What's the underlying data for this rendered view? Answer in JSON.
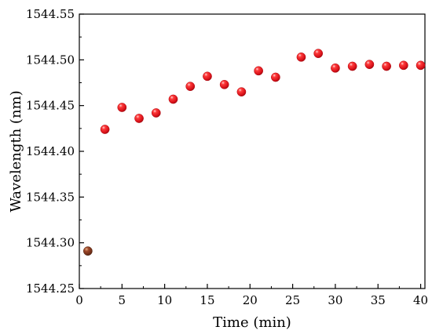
{
  "chart_data": {
    "type": "scatter",
    "title": "",
    "xlabel": "Time (min)",
    "ylabel": "Wavelength (nm)",
    "xlim": [
      0,
      40.5
    ],
    "ylim": [
      1544.25,
      1544.55
    ],
    "grid": false,
    "legend": "none",
    "marker_color": "#e8141c",
    "first_marker_color": "#8b3a1a",
    "x_ticks": [
      0,
      5,
      10,
      15,
      20,
      25,
      30,
      35,
      40
    ],
    "x_tick_labels": [
      "0",
      "5",
      "10",
      "15",
      "20",
      "25",
      "30",
      "35",
      "40"
    ],
    "y_ticks": [
      1544.25,
      1544.3,
      1544.35,
      1544.4,
      1544.45,
      1544.5,
      1544.55
    ],
    "y_tick_labels": [
      "1544.25",
      "1544.30",
      "1544.35",
      "1544.40",
      "1544.45",
      "1544.50",
      "1544.55"
    ],
    "series": [
      {
        "x": [
          1,
          3,
          5,
          7,
          9,
          11,
          13,
          15,
          17,
          19,
          21,
          23,
          26,
          28,
          30,
          32,
          34,
          36,
          38,
          40
        ],
        "y": [
          1544.291,
          1544.424,
          1544.448,
          1544.436,
          1544.442,
          1544.457,
          1544.471,
          1544.482,
          1544.473,
          1544.465,
          1544.488,
          1544.481,
          1544.503,
          1544.507,
          1544.491,
          1544.493,
          1544.495,
          1544.493,
          1544.494,
          1544.494
        ]
      }
    ]
  }
}
